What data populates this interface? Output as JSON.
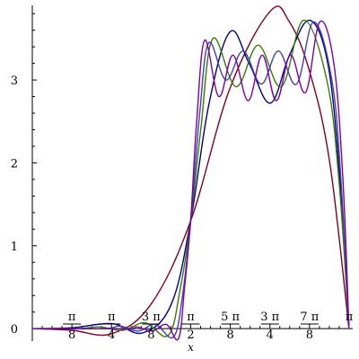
{
  "chart_data": {
    "type": "line",
    "title": "",
    "xlabel": "x",
    "ylabel": "",
    "xlim": [
      0,
      3.14159
    ],
    "ylim": [
      -0.15,
      3.9
    ],
    "grid": false,
    "x_ticks": [
      {
        "value": 0.3927,
        "num": "π",
        "den": "8"
      },
      {
        "value": 0.7854,
        "num": "π",
        "den": "4"
      },
      {
        "value": 1.1781,
        "num": "3 π",
        "den": "8"
      },
      {
        "value": 1.5708,
        "num": "π",
        "den": "2"
      },
      {
        "value": 1.9635,
        "num": "5 π",
        "den": "8"
      },
      {
        "value": 2.3562,
        "num": "3 π",
        "den": "4"
      },
      {
        "value": 2.7489,
        "num": "7 π",
        "den": "8"
      },
      {
        "value": 3.1416,
        "label": "π"
      }
    ],
    "y_ticks": [
      {
        "value": 0,
        "label": "0"
      },
      {
        "value": 1,
        "label": "1"
      },
      {
        "value": 2,
        "label": "2"
      },
      {
        "value": 3,
        "label": "3"
      }
    ],
    "series": [
      {
        "color": "#800020",
        "x": [
          0,
          0.39,
          0.79,
          1.18,
          1.57,
          1.96,
          2.36,
          2.55,
          2.75,
          2.95,
          3.14
        ],
        "y": [
          0,
          -0.02,
          -0.06,
          0.3,
          1.3,
          2.9,
          3.83,
          3.7,
          3.1,
          2.0,
          0
        ]
      },
      {
        "color": "#000080",
        "x": [
          0,
          0.39,
          0.79,
          1.1,
          1.38,
          1.57,
          1.75,
          1.96,
          2.15,
          2.36,
          2.55,
          2.75,
          2.93,
          3.05,
          3.14
        ],
        "y": [
          0,
          0.01,
          0.06,
          -0.05,
          0.3,
          1.3,
          2.7,
          3.58,
          3.2,
          2.72,
          3.3,
          3.72,
          3.2,
          1.8,
          0
        ]
      },
      {
        "color": "#3a7a00",
        "x": [
          0,
          0.45,
          0.67,
          0.9,
          1.12,
          1.35,
          1.47,
          1.57,
          1.67,
          1.79,
          2.02,
          2.24,
          2.47,
          2.69,
          2.92,
          3.04,
          3.14
        ],
        "y": [
          0,
          0.0,
          0.02,
          -0.02,
          0.07,
          -0.08,
          0.5,
          1.3,
          2.4,
          3.5,
          2.92,
          3.42,
          2.92,
          3.72,
          3.0,
          1.8,
          0
        ]
      },
      {
        "color": "#4040b0",
        "x": [
          0,
          0.7,
          0.87,
          1.05,
          1.22,
          1.4,
          1.49,
          1.57,
          1.66,
          1.75,
          1.92,
          2.09,
          2.27,
          2.44,
          2.62,
          2.79,
          2.97,
          3.06,
          3.14
        ],
        "y": [
          0,
          0.0,
          0.03,
          -0.03,
          0.05,
          -0.1,
          0.4,
          1.3,
          2.6,
          3.45,
          3.0,
          3.35,
          2.95,
          3.35,
          2.95,
          3.7,
          3.0,
          1.8,
          0
        ]
      },
      {
        "color": "#8000a0",
        "x": [
          0,
          0.9,
          1.04,
          1.19,
          1.33,
          1.45,
          1.51,
          1.57,
          1.63,
          1.71,
          1.85,
          1.99,
          2.14,
          2.28,
          2.42,
          2.56,
          2.71,
          2.85,
          2.99,
          3.08,
          3.14
        ],
        "y": [
          0,
          0.0,
          0.02,
          -0.03,
          0.05,
          -0.12,
          0.5,
          1.3,
          2.5,
          3.48,
          2.8,
          3.3,
          2.75,
          3.3,
          2.75,
          3.3,
          2.85,
          3.7,
          3.2,
          1.8,
          0
        ]
      }
    ]
  }
}
